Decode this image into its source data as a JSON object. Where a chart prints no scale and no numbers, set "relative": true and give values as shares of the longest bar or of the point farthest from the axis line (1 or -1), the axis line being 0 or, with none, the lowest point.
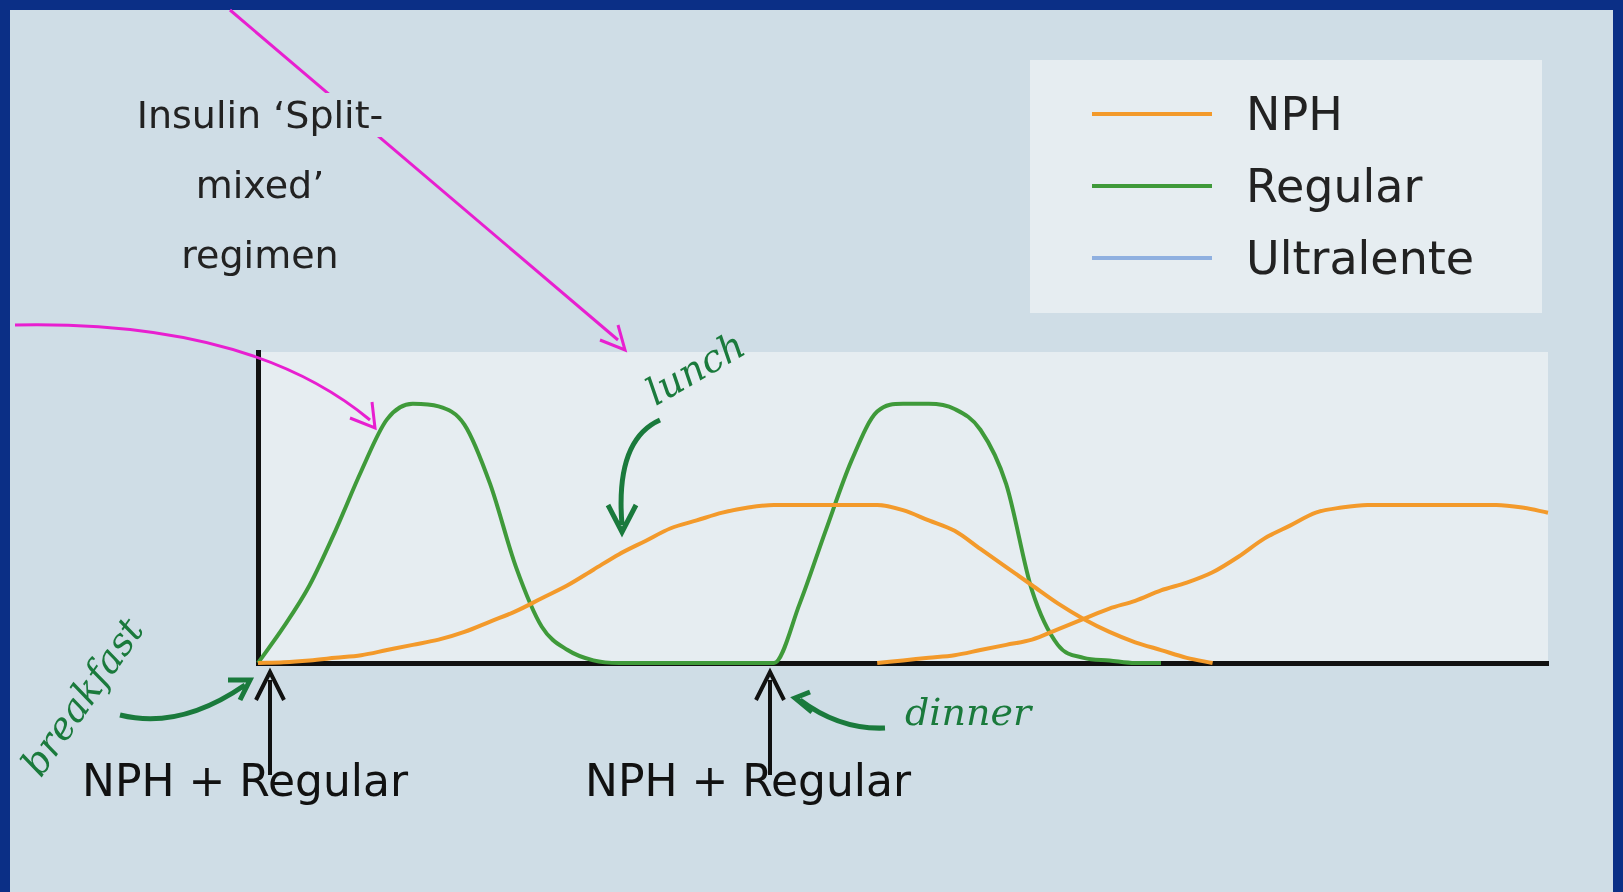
{
  "chart_data": {
    "type": "line",
    "title": "Insulin ‘Split-mixed’ regimen",
    "relative": true,
    "categories": [
      null,
      null,
      null,
      null,
      null,
      null,
      null,
      null,
      null,
      null,
      null,
      null,
      null,
      null,
      null,
      null,
      null,
      null,
      null,
      null,
      null,
      null,
      null,
      null,
      null,
      null,
      null,
      null,
      null,
      null,
      null,
      null,
      null,
      null,
      null,
      null,
      null,
      null,
      null,
      null,
      null,
      null,
      null,
      null,
      null,
      null,
      null,
      null,
      null,
      null,
      null
    ],
    "series": [
      {
        "name": "NPH",
        "color": "#f39a2b",
        "values": [
          0,
          0.003,
          0.01,
          0.02,
          0.03,
          0.05,
          0.07,
          0.09,
          0.12,
          0.16,
          0.2,
          0.25,
          0.3,
          0.36,
          0.42,
          0.47,
          0.52,
          0.55,
          0.58,
          0.6,
          0.61,
          0.61,
          0.61,
          0.61,
          0.61,
          0.59,
          0.55,
          0.51,
          0.44,
          0.37,
          0.3,
          0.23,
          0.17,
          0.12,
          0.08,
          0.05,
          0.02,
          0,
          null,
          null,
          null,
          null,
          null,
          null,
          null,
          null,
          null,
          null,
          null,
          null,
          null
        ]
      },
      {
        "color": "#f39a2b",
        "values": [
          null,
          null,
          null,
          null,
          null,
          null,
          null,
          null,
          null,
          null,
          null,
          null,
          null,
          null,
          null,
          null,
          null,
          null,
          null,
          null,
          null,
          null,
          null,
          null,
          0,
          0.01,
          0.02,
          0.03,
          0.05,
          0.07,
          0.09,
          0.13,
          0.17,
          0.21,
          0.24,
          0.28,
          0.31,
          0.35,
          0.41,
          0.48,
          0.53,
          0.58,
          0.6,
          0.61,
          0.61,
          0.61,
          0.61,
          0.61,
          0.61,
          0.6,
          0.58
        ]
      },
      {
        "name": "Regular",
        "color": "#3f9a3a",
        "values": [
          0,
          0.14,
          0.3,
          0.51,
          0.74,
          0.94,
          1,
          0.99,
          0.92,
          0.69,
          0.37,
          0.14,
          0.05,
          0.01,
          0,
          0,
          0,
          0,
          0,
          0,
          0,
          0.23,
          0.51,
          0.78,
          0.97,
          1,
          1,
          0.98,
          0.9,
          0.69,
          0.28,
          0.07,
          0.02,
          0.01,
          0,
          0,
          null,
          null,
          null,
          null,
          null,
          null,
          null,
          null,
          null,
          null,
          null,
          null,
          null,
          null,
          null
        ]
      },
      {
        "name": "Ultralente",
        "color": "#8fb0e0",
        "values": [
          null,
          null,
          null,
          null,
          null,
          null,
          null,
          null,
          null,
          null,
          null,
          null,
          null,
          null,
          null,
          null,
          null,
          null,
          null,
          null,
          null,
          null,
          null,
          null,
          null,
          null,
          null,
          null,
          null,
          null,
          null,
          null,
          null,
          null,
          null,
          null,
          null,
          null,
          null,
          null,
          null,
          null,
          null,
          null,
          null,
          null,
          null,
          null,
          null,
          null,
          null
        ]
      }
    ],
    "legend": "top right",
    "grid": false,
    "marker": "none",
    "line_style": "solid",
    "annotations": [
      "NPH + Regular",
      "NPH + Regular",
      "breakfast",
      "lunch",
      "dinner"
    ]
  }
}
